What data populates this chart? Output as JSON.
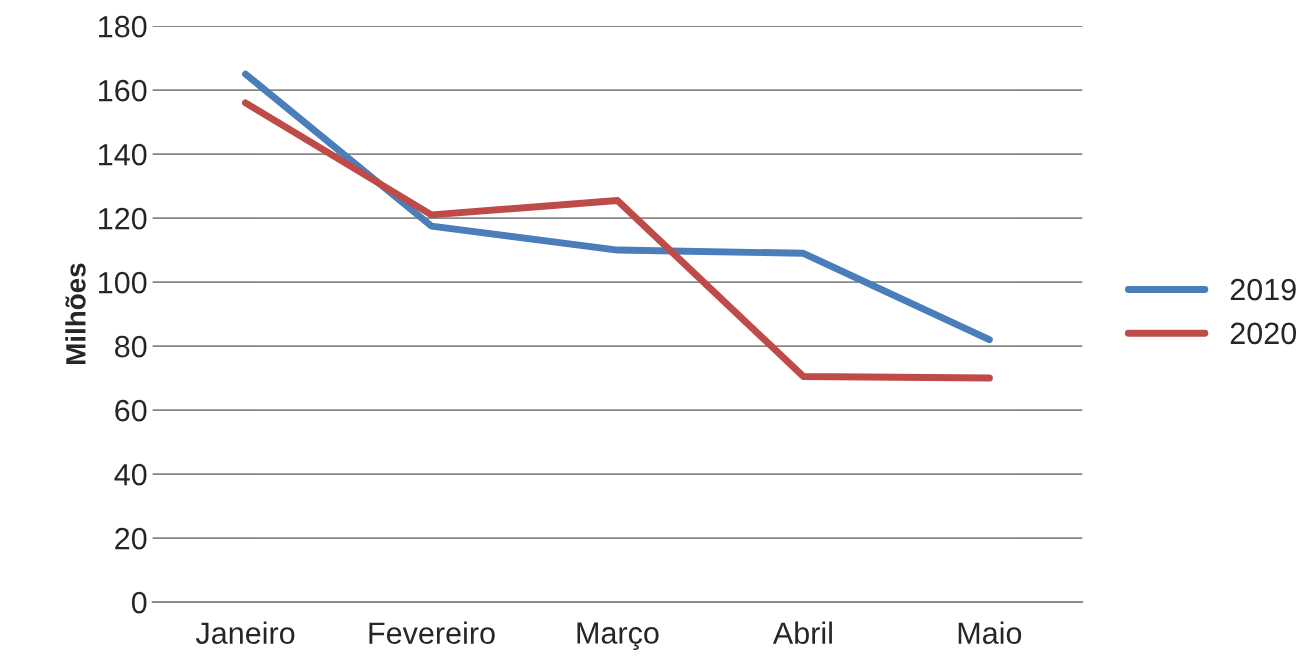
{
  "chart_data": {
    "type": "line",
    "ylabel": "Milhões",
    "categories": [
      "Janeiro",
      "Fevereiro",
      "Março",
      "Abril",
      "Maio"
    ],
    "series": [
      {
        "name": "2019",
        "color": "#4a7ebb",
        "values": [
          165,
          117.5,
          110,
          109,
          82
        ]
      },
      {
        "name": "2020",
        "color": "#be4b48",
        "values": [
          156,
          121,
          125.5,
          70.5,
          70
        ]
      }
    ],
    "ylim": [
      0,
      180
    ],
    "yticks": [
      0,
      20,
      40,
      60,
      80,
      100,
      120,
      140,
      160,
      180
    ],
    "grid": "y",
    "legend": "right",
    "marker": "none",
    "line_style": "solid"
  }
}
